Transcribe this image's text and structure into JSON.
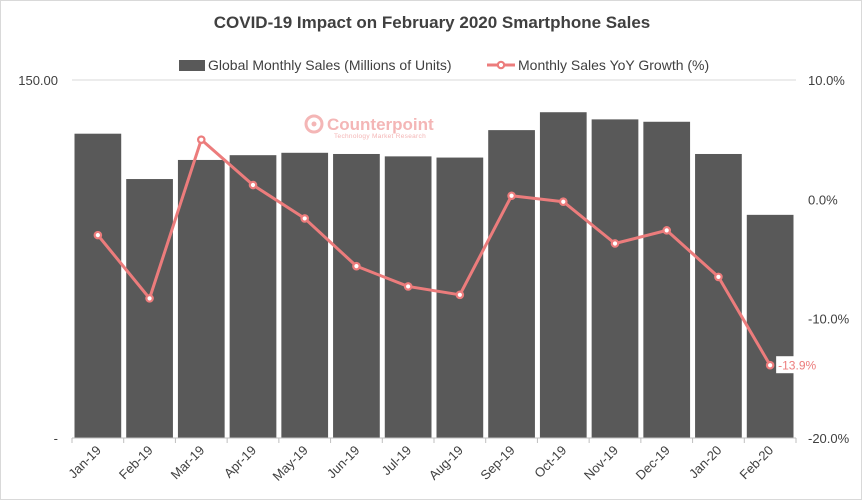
{
  "chart_data": {
    "type": "bar+line",
    "title": "COVID-19 Impact on February 2020 Smartphone Sales",
    "categories": [
      "Jan-19",
      "Feb-19",
      "Mar-19",
      "Apr-19",
      "May-19",
      "Jun-19",
      "Jul-19",
      "Aug-19",
      "Sep-19",
      "Oct-19",
      "Nov-19",
      "Dec-19",
      "Jan-20",
      "Feb-20"
    ],
    "series": [
      {
        "name": "Global Monthly Sales (Millions of Units)",
        "type": "bar",
        "axis": "left",
        "color": "#595959",
        "values": [
          127.5,
          108.5,
          116.5,
          118.5,
          119.5,
          119.0,
          118.0,
          117.5,
          129.0,
          136.5,
          133.5,
          132.5,
          119.0,
          93.5
        ]
      },
      {
        "name": "Monthly Sales YoY Growth (%)",
        "type": "line",
        "axis": "right",
        "color": "#ec7c7c",
        "values": [
          -3.0,
          -8.3,
          5.0,
          1.2,
          -1.6,
          -5.6,
          -7.3,
          -8.0,
          0.3,
          -0.2,
          -3.7,
          -2.6,
          -6.5,
          -13.9
        ]
      }
    ],
    "y_left": {
      "min": 0,
      "max": 150,
      "tick_labels": [
        "150.00",
        "-"
      ]
    },
    "y_right": {
      "min": -20,
      "max": 10,
      "step": 10,
      "tick_labels": [
        "10.0%",
        "0.0%",
        "-10.0%",
        "-20.0%"
      ]
    },
    "data_labels": [
      {
        "series": 1,
        "index": 13,
        "text": "-13.9%"
      }
    ],
    "legend": {
      "position": "top",
      "items": [
        "Global Monthly Sales (Millions of Units)",
        "Monthly Sales YoY Growth (%)"
      ]
    },
    "watermark": {
      "main": "Counterpoint",
      "sub": "Technology Market Research"
    }
  }
}
